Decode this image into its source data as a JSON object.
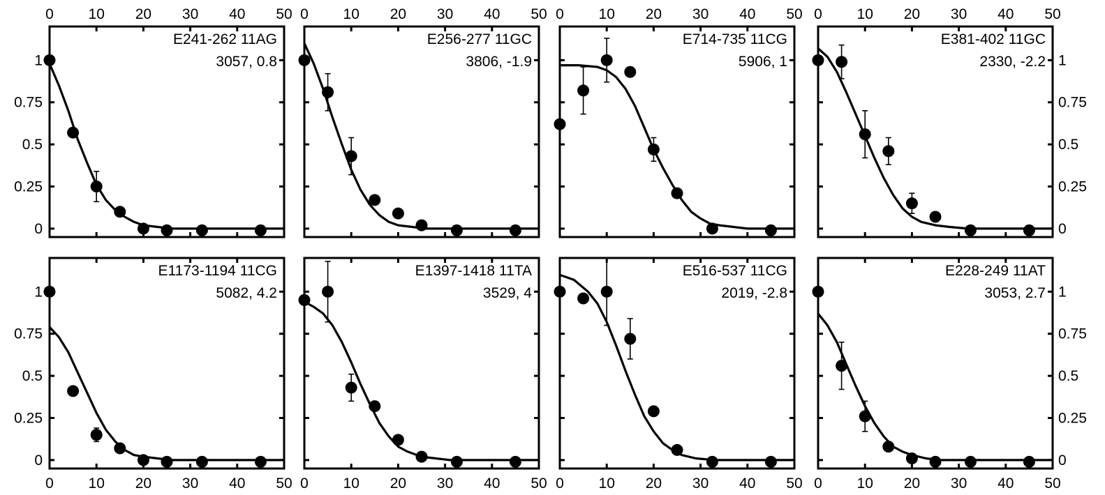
{
  "chart_data": [
    {
      "type": "scatter",
      "title": "E241-262 11AG",
      "subtitle": "3057, 0.8",
      "xlim": [
        0,
        50
      ],
      "ylim": [
        -0.05,
        1.2
      ],
      "yticks": [
        "0",
        "0.25",
        "0.5",
        "0.75",
        "1"
      ],
      "xticks": [
        "0",
        "10",
        "20",
        "30",
        "40",
        "50"
      ],
      "points": [
        {
          "x": 0,
          "y": 1.0,
          "err": null
        },
        {
          "x": 5,
          "y": 0.57,
          "err": null
        },
        {
          "x": 10,
          "y": 0.25,
          "err": 0.09
        },
        {
          "x": 15,
          "y": 0.1,
          "err": null
        },
        {
          "x": 20,
          "y": 0.0,
          "err": null
        },
        {
          "x": 25,
          "y": -0.01,
          "err": null
        },
        {
          "x": 32.5,
          "y": -0.01,
          "err": null
        },
        {
          "x": 45,
          "y": -0.01,
          "err": null
        }
      ],
      "fit": [
        [
          0,
          0.98
        ],
        [
          2,
          0.85
        ],
        [
          4,
          0.7
        ],
        [
          6,
          0.53
        ],
        [
          8,
          0.39
        ],
        [
          10,
          0.26
        ],
        [
          12,
          0.17
        ],
        [
          14,
          0.11
        ],
        [
          16,
          0.07
        ],
        [
          18,
          0.04
        ],
        [
          20,
          0.02
        ],
        [
          23,
          0.01
        ],
        [
          26,
          0.0
        ],
        [
          50,
          0.0
        ]
      ]
    },
    {
      "type": "scatter",
      "title": "E256-277 11GC",
      "subtitle": "3806, -1.9",
      "xlim": [
        0,
        50
      ],
      "ylim": [
        -0.05,
        1.2
      ],
      "yticks": [
        "0",
        "0.25",
        "0.5",
        "0.75",
        "1"
      ],
      "xticks": [
        "0",
        "10",
        "20",
        "30",
        "40",
        "50"
      ],
      "points": [
        {
          "x": 0,
          "y": 1.0,
          "err": null
        },
        {
          "x": 5,
          "y": 0.81,
          "err": 0.11
        },
        {
          "x": 10,
          "y": 0.43,
          "err": 0.11
        },
        {
          "x": 15,
          "y": 0.17,
          "err": null
        },
        {
          "x": 20,
          "y": 0.09,
          "err": null
        },
        {
          "x": 25,
          "y": 0.02,
          "err": null
        },
        {
          "x": 32.5,
          "y": -0.01,
          "err": null
        },
        {
          "x": 45,
          "y": -0.01,
          "err": null
        }
      ],
      "fit": [
        [
          0,
          1.1
        ],
        [
          2,
          0.98
        ],
        [
          4,
          0.83
        ],
        [
          6,
          0.66
        ],
        [
          8,
          0.5
        ],
        [
          10,
          0.35
        ],
        [
          12,
          0.23
        ],
        [
          14,
          0.14
        ],
        [
          16,
          0.08
        ],
        [
          18,
          0.04
        ],
        [
          20,
          0.02
        ],
        [
          23,
          0.01
        ],
        [
          26,
          0.0
        ],
        [
          50,
          0.0
        ]
      ]
    },
    {
      "type": "scatter",
      "title": "E714-735 11CG",
      "subtitle": "5906, 1",
      "xlim": [
        0,
        50
      ],
      "ylim": [
        -0.05,
        1.2
      ],
      "yticks": [
        "0",
        "0.25",
        "0.5",
        "0.75",
        "1"
      ],
      "xticks": [
        "0",
        "10",
        "20",
        "30",
        "40",
        "50"
      ],
      "points": [
        {
          "x": 0,
          "y": 0.62,
          "err": null
        },
        {
          "x": 5,
          "y": 0.82,
          "err": 0.14
        },
        {
          "x": 10,
          "y": 1.0,
          "err": 0.13
        },
        {
          "x": 15,
          "y": 0.93,
          "err": null
        },
        {
          "x": 20,
          "y": 0.47,
          "err": 0.07
        },
        {
          "x": 25,
          "y": 0.21,
          "err": null
        },
        {
          "x": 32.5,
          "y": 0.0,
          "err": null
        },
        {
          "x": 45,
          "y": -0.01,
          "err": null
        }
      ],
      "fit": [
        [
          0,
          0.97
        ],
        [
          4,
          0.97
        ],
        [
          8,
          0.96
        ],
        [
          10,
          0.94
        ],
        [
          12,
          0.9
        ],
        [
          14,
          0.83
        ],
        [
          16,
          0.73
        ],
        [
          18,
          0.6
        ],
        [
          20,
          0.47
        ],
        [
          22,
          0.36
        ],
        [
          24,
          0.26
        ],
        [
          26,
          0.17
        ],
        [
          28,
          0.1
        ],
        [
          30,
          0.06
        ],
        [
          32,
          0.03
        ],
        [
          34,
          0.02
        ],
        [
          37,
          0.01
        ],
        [
          40,
          0.0
        ],
        [
          50,
          0.0
        ]
      ]
    },
    {
      "type": "scatter",
      "title": "E381-402 11GC",
      "subtitle": "2330, -2.2",
      "xlim": [
        0,
        50
      ],
      "ylim": [
        -0.05,
        1.2
      ],
      "yticks": [
        "0",
        "0.25",
        "0.5",
        "0.75",
        "1"
      ],
      "xticks": [
        "0",
        "10",
        "20",
        "30",
        "40",
        "50"
      ],
      "points": [
        {
          "x": 0,
          "y": 1.0,
          "err": null
        },
        {
          "x": 5,
          "y": 0.99,
          "err": 0.1
        },
        {
          "x": 10,
          "y": 0.56,
          "err": 0.14
        },
        {
          "x": 15,
          "y": 0.46,
          "err": 0.08
        },
        {
          "x": 20,
          "y": 0.15,
          "err": 0.06
        },
        {
          "x": 25,
          "y": 0.07,
          "err": null
        },
        {
          "x": 32.5,
          "y": -0.01,
          "err": null
        },
        {
          "x": 45,
          "y": -0.01,
          "err": null
        }
      ],
      "fit": [
        [
          0,
          1.07
        ],
        [
          2,
          1.02
        ],
        [
          4,
          0.93
        ],
        [
          6,
          0.81
        ],
        [
          8,
          0.68
        ],
        [
          10,
          0.55
        ],
        [
          12,
          0.42
        ],
        [
          14,
          0.3
        ],
        [
          16,
          0.2
        ],
        [
          18,
          0.12
        ],
        [
          20,
          0.07
        ],
        [
          22,
          0.04
        ],
        [
          25,
          0.02
        ],
        [
          28,
          0.01
        ],
        [
          32,
          0.0
        ],
        [
          50,
          0.0
        ]
      ]
    },
    {
      "type": "scatter",
      "title": "E1173-1194 11CG",
      "subtitle": "5082, 4.2",
      "xlim": [
        0,
        50
      ],
      "ylim": [
        -0.05,
        1.2
      ],
      "yticks": [
        "0",
        "0.25",
        "0.5",
        "0.75",
        "1"
      ],
      "xticks": [
        "0",
        "10",
        "20",
        "30",
        "40",
        "50"
      ],
      "points": [
        {
          "x": 0,
          "y": 1.0,
          "err": null
        },
        {
          "x": 5,
          "y": 0.41,
          "err": null
        },
        {
          "x": 10,
          "y": 0.15,
          "err": 0.04
        },
        {
          "x": 15,
          "y": 0.07,
          "err": null
        },
        {
          "x": 20,
          "y": 0.0,
          "err": null
        },
        {
          "x": 25,
          "y": -0.01,
          "err": null
        },
        {
          "x": 32.5,
          "y": -0.01,
          "err": null
        },
        {
          "x": 45,
          "y": -0.01,
          "err": null
        }
      ],
      "fit": [
        [
          0,
          0.79
        ],
        [
          2,
          0.73
        ],
        [
          4,
          0.64
        ],
        [
          6,
          0.52
        ],
        [
          8,
          0.4
        ],
        [
          10,
          0.28
        ],
        [
          12,
          0.18
        ],
        [
          14,
          0.11
        ],
        [
          16,
          0.06
        ],
        [
          18,
          0.03
        ],
        [
          20,
          0.02
        ],
        [
          23,
          0.01
        ],
        [
          26,
          0.0
        ],
        [
          50,
          0.0
        ]
      ]
    },
    {
      "type": "scatter",
      "title": "E1397-1418 11TA",
      "subtitle": "3529, 4",
      "xlim": [
        0,
        50
      ],
      "ylim": [
        -0.05,
        1.2
      ],
      "yticks": [
        "0",
        "0.25",
        "0.5",
        "0.75",
        "1"
      ],
      "xticks": [
        "0",
        "10",
        "20",
        "30",
        "40",
        "50"
      ],
      "points": [
        {
          "x": 0,
          "y": 0.95,
          "err": null
        },
        {
          "x": 5,
          "y": 1.0,
          "err": 0.18
        },
        {
          "x": 10,
          "y": 0.43,
          "err": 0.08
        },
        {
          "x": 15,
          "y": 0.32,
          "err": null
        },
        {
          "x": 20,
          "y": 0.12,
          "err": null
        },
        {
          "x": 25,
          "y": 0.02,
          "err": null
        },
        {
          "x": 32.5,
          "y": -0.01,
          "err": null
        },
        {
          "x": 45,
          "y": -0.01,
          "err": null
        }
      ],
      "fit": [
        [
          0,
          0.94
        ],
        [
          2,
          0.91
        ],
        [
          4,
          0.87
        ],
        [
          6,
          0.8
        ],
        [
          8,
          0.7
        ],
        [
          10,
          0.58
        ],
        [
          12,
          0.45
        ],
        [
          14,
          0.33
        ],
        [
          16,
          0.22
        ],
        [
          18,
          0.14
        ],
        [
          20,
          0.08
        ],
        [
          22,
          0.05
        ],
        [
          25,
          0.02
        ],
        [
          28,
          0.01
        ],
        [
          31,
          0.0
        ],
        [
          50,
          0.0
        ]
      ]
    },
    {
      "type": "scatter",
      "title": "E516-537 11CG",
      "subtitle": "2019, -2.8",
      "xlim": [
        0,
        50
      ],
      "ylim": [
        -0.05,
        1.2
      ],
      "yticks": [
        "0",
        "0.25",
        "0.5",
        "0.75",
        "1"
      ],
      "xticks": [
        "0",
        "10",
        "20",
        "30",
        "40",
        "50"
      ],
      "points": [
        {
          "x": 0,
          "y": 1.0,
          "err": null
        },
        {
          "x": 5,
          "y": 0.96,
          "err": null
        },
        {
          "x": 10,
          "y": 1.0,
          "err": 0.2
        },
        {
          "x": 15,
          "y": 0.72,
          "err": 0.12
        },
        {
          "x": 20,
          "y": 0.29,
          "err": null
        },
        {
          "x": 25,
          "y": 0.06,
          "err": null
        },
        {
          "x": 32.5,
          "y": -0.01,
          "err": null
        },
        {
          "x": 45,
          "y": -0.01,
          "err": null
        }
      ],
      "fit": [
        [
          0,
          1.1
        ],
        [
          3,
          1.07
        ],
        [
          6,
          1.0
        ],
        [
          8,
          0.93
        ],
        [
          10,
          0.82
        ],
        [
          12,
          0.68
        ],
        [
          14,
          0.53
        ],
        [
          16,
          0.39
        ],
        [
          18,
          0.26
        ],
        [
          20,
          0.17
        ],
        [
          22,
          0.1
        ],
        [
          24,
          0.06
        ],
        [
          26,
          0.03
        ],
        [
          29,
          0.01
        ],
        [
          33,
          0.0
        ],
        [
          50,
          0.0
        ]
      ]
    },
    {
      "type": "scatter",
      "title": "E228-249 11AT",
      "subtitle": "3053, 2.7",
      "xlim": [
        0,
        50
      ],
      "ylim": [
        -0.05,
        1.2
      ],
      "yticks": [
        "0",
        "0.25",
        "0.5",
        "0.75",
        "1"
      ],
      "xticks": [
        "0",
        "10",
        "20",
        "30",
        "40",
        "50"
      ],
      "points": [
        {
          "x": 0,
          "y": 1.0,
          "err": null
        },
        {
          "x": 5,
          "y": 0.56,
          "err": 0.14
        },
        {
          "x": 10,
          "y": 0.26,
          "err": 0.09
        },
        {
          "x": 15,
          "y": 0.08,
          "err": null
        },
        {
          "x": 20,
          "y": 0.01,
          "err": null
        },
        {
          "x": 25,
          "y": -0.01,
          "err": null
        },
        {
          "x": 32.5,
          "y": -0.01,
          "err": null
        },
        {
          "x": 45,
          "y": -0.01,
          "err": null
        }
      ],
      "fit": [
        [
          0,
          0.87
        ],
        [
          2,
          0.8
        ],
        [
          4,
          0.7
        ],
        [
          6,
          0.57
        ],
        [
          8,
          0.44
        ],
        [
          10,
          0.32
        ],
        [
          12,
          0.22
        ],
        [
          14,
          0.14
        ],
        [
          16,
          0.08
        ],
        [
          18,
          0.05
        ],
        [
          20,
          0.03
        ],
        [
          23,
          0.01
        ],
        [
          26,
          0.0
        ],
        [
          50,
          0.0
        ]
      ]
    }
  ]
}
